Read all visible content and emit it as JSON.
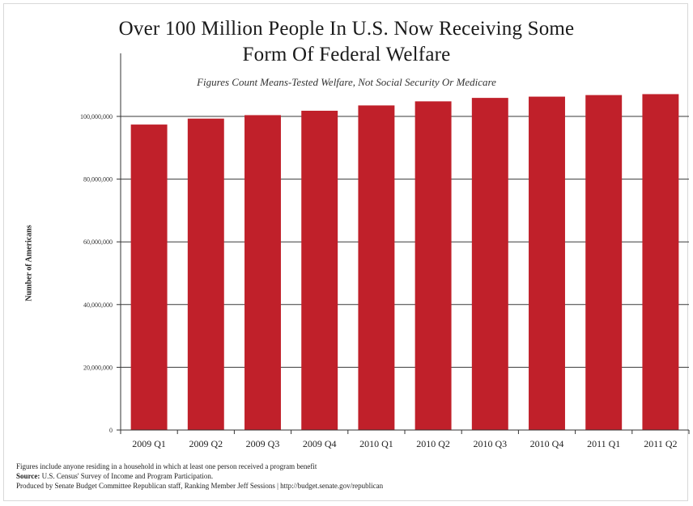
{
  "chart_data": {
    "type": "bar",
    "title_lines": [
      "Over 100 Million People In U.S. Now Receiving Some",
      "Form Of Federal Welfare"
    ],
    "subtitle": "Figures Count Means-Tested Welfare, Not Social Security Or Medicare",
    "xlabel": "",
    "ylabel": "Number of Americans",
    "categories": [
      "2009 Q1",
      "2009 Q2",
      "2009 Q3",
      "2009 Q4",
      "2010 Q1",
      "2010 Q2",
      "2010 Q3",
      "2010 Q4",
      "2011 Q1",
      "2011 Q2"
    ],
    "values": [
      97400000,
      99300000,
      100400000,
      101800000,
      103500000,
      104800000,
      105900000,
      106300000,
      106800000,
      107100000
    ],
    "ylim": [
      0,
      100000000
    ],
    "yticks": [
      0,
      20000000,
      40000000,
      60000000,
      80000000,
      100000000
    ],
    "ytick_labels": [
      "0",
      "20,000,000",
      "40,000,000",
      "60,000,000",
      "80,000,000",
      "100,000,000"
    ],
    "grid": true,
    "bar_color": "#c0202a"
  },
  "footer": {
    "note": "Figures include anyone residing in a household in which at least one person received a program benefit",
    "source_label": "Source:",
    "source_text": "U.S. Census' Survey of Income and Program Participation.",
    "produced_by": "Produced by Senate Budget Committee Republican staff, Ranking Member Jeff Sessions | http://budget.senate.gov/republican"
  }
}
